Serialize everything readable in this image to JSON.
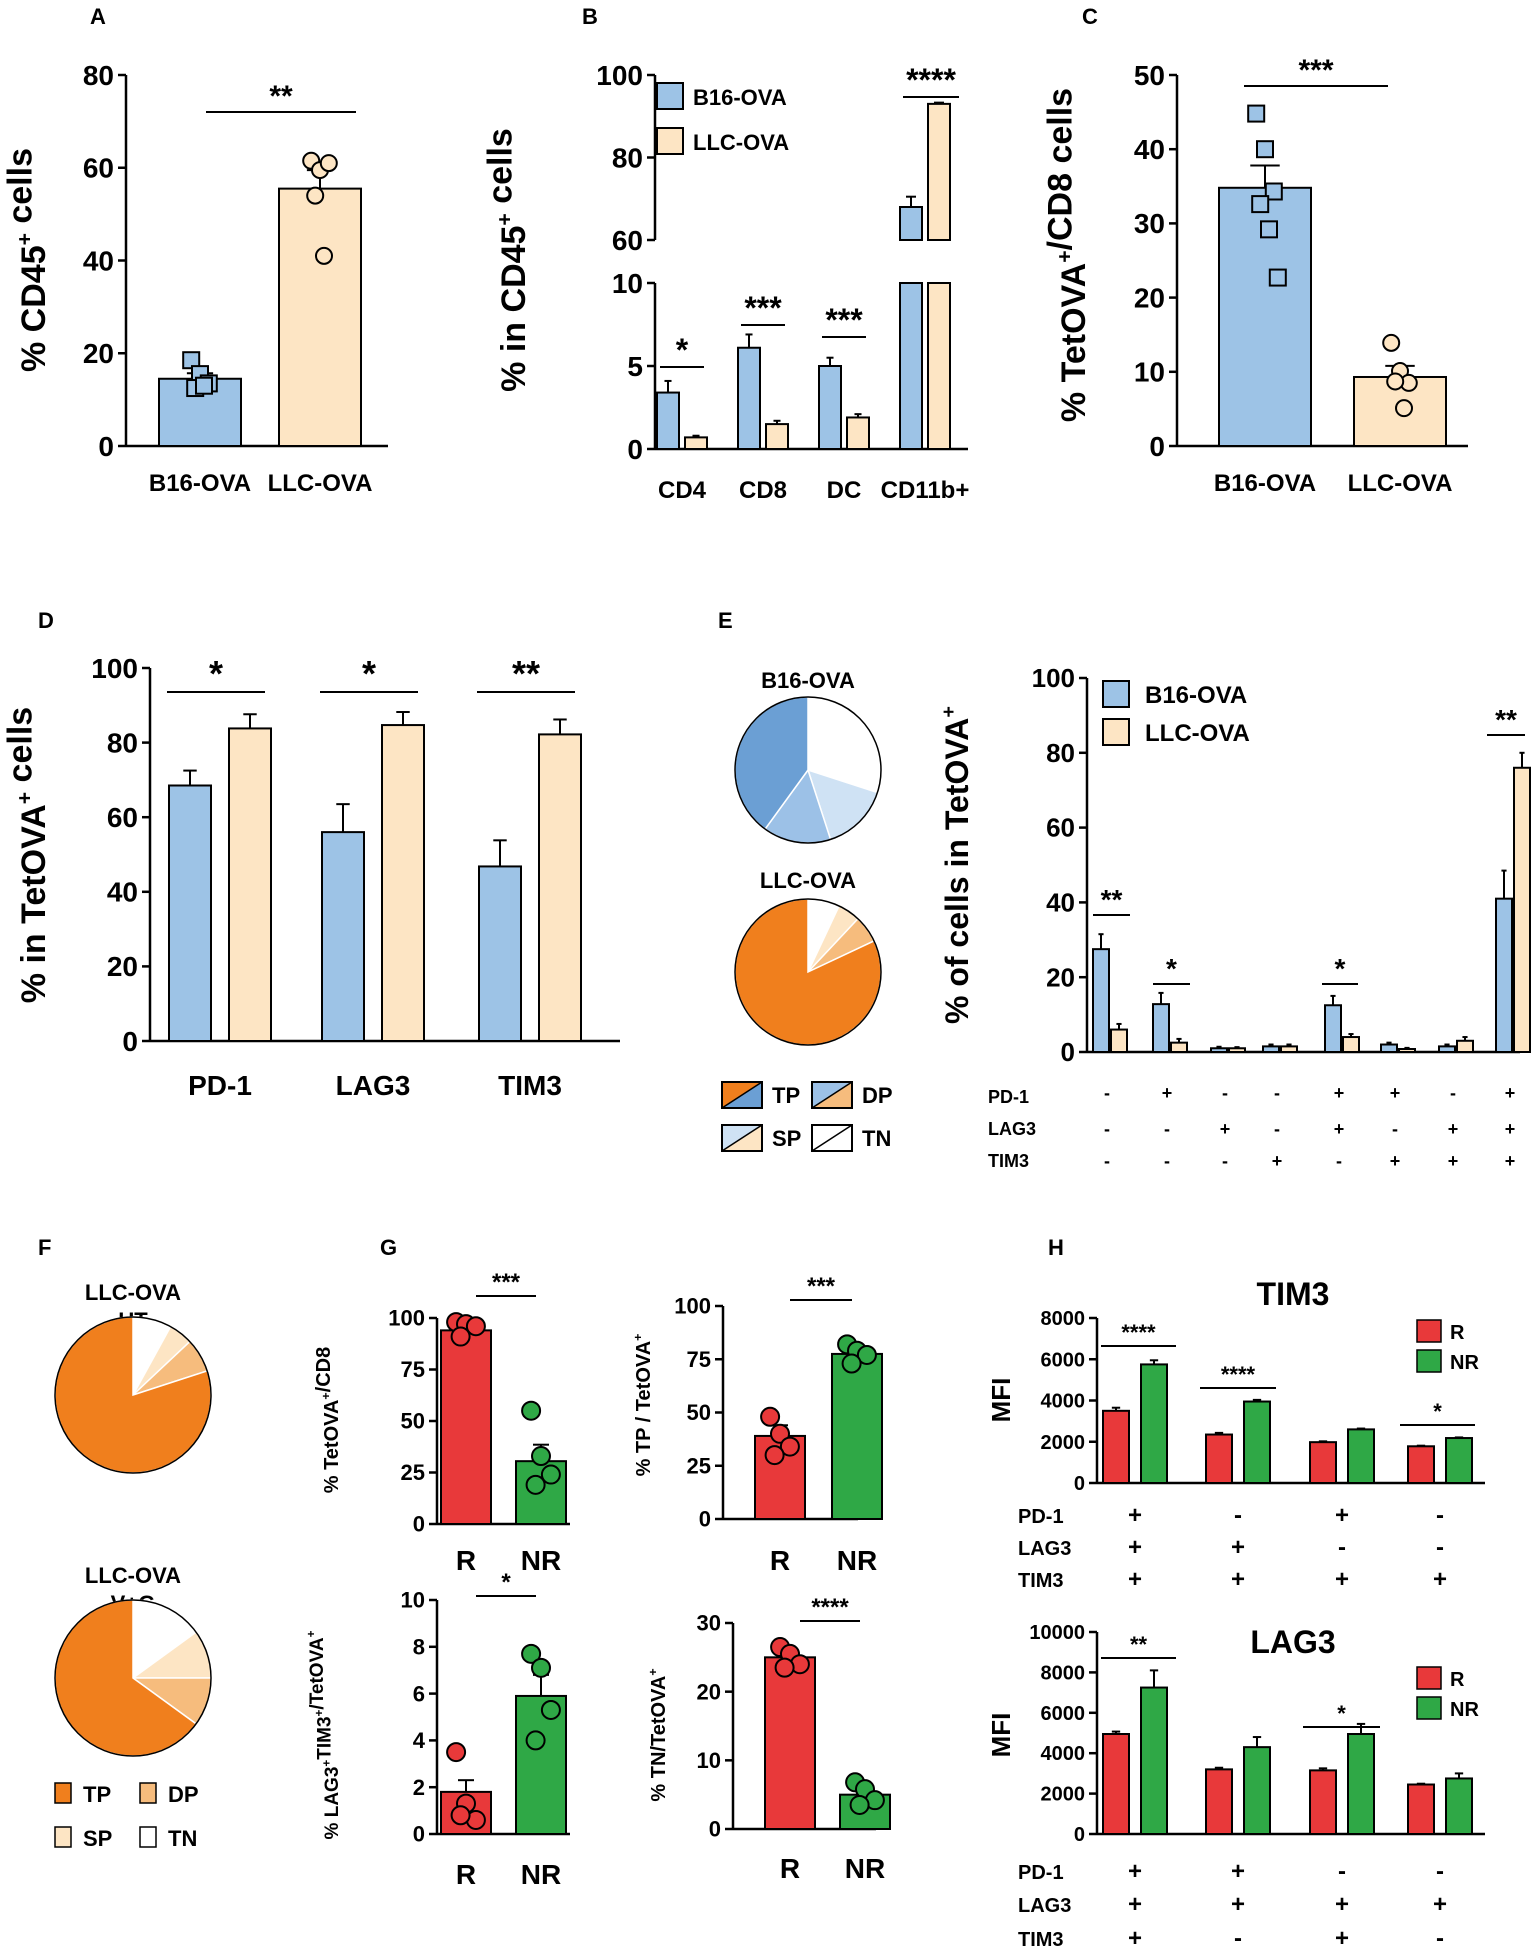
{
  "colors": {
    "blue": "#9dc3e6",
    "cream": "#fde5c4",
    "red": "#e8393a",
    "green": "#2fa846",
    "orange": "#f07f1d",
    "tp_dark": "#6b9fd4",
    "dp_mid": "#9cc1e7",
    "sp_light": "#cfe2f4",
    "tn": "#ffffff",
    "lorange": "#f6bc7d",
    "xlorange": "#fde5c4"
  },
  "panel_labels": {
    "A": "A",
    "B": "B",
    "C": "C",
    "D": "D",
    "E": "E",
    "F": "F",
    "G": "G",
    "H": "H"
  },
  "chart_data": [
    {
      "id": "A",
      "type": "bar",
      "title": "",
      "ylabel": "% CD45",
      "ylabel_sup": "+",
      "ylabel_tail": " cells",
      "categories": [
        "B16-OVA",
        "LLC-OVA"
      ],
      "values": [
        14.5,
        55.5
      ],
      "errors": [
        1.2,
        4.0
      ],
      "points": [
        [
          18.5,
          15.5,
          13.5,
          12.5,
          13.0
        ],
        [
          61.5,
          59.5,
          61.0,
          54.0,
          41.0
        ]
      ],
      "ylim": [
        0,
        80
      ],
      "yticks": [
        "0",
        "20",
        "40",
        "60",
        "80"
      ],
      "significance": [
        {
          "label": "**"
        }
      ]
    },
    {
      "id": "B",
      "type": "bar",
      "title": "",
      "ylabel": "% in CD45",
      "ylabel_sup": "+",
      "ylabel_tail": " cells",
      "categories": [
        "CD4",
        "CD8",
        "DC",
        "CD11b+"
      ],
      "series": [
        {
          "name": "B16-OVA",
          "values": [
            3.4,
            6.1,
            5.0,
            68.0
          ],
          "errors": [
            0.7,
            0.8,
            0.5,
            2.5
          ]
        },
        {
          "name": "LLC-OVA",
          "values": [
            0.7,
            1.5,
            1.9,
            93.0
          ],
          "errors": [
            0.1,
            0.2,
            0.2,
            0.3
          ]
        }
      ],
      "axis_break": {
        "lower": [
          0,
          10
        ],
        "upper": [
          60,
          100
        ]
      },
      "yticks": [
        "0",
        "5",
        "10",
        "60",
        "80",
        "100"
      ],
      "significance": [
        {
          "label": "*"
        },
        {
          "label": "***"
        },
        {
          "label": "***"
        },
        {
          "label": "****"
        }
      ]
    },
    {
      "id": "C",
      "type": "bar",
      "title": "",
      "ylabel": "% TetOVA",
      "ylabel_sup": "+",
      "ylabel_tail": "/CD8 cells",
      "categories": [
        "B16-OVA",
        "LLC-OVA"
      ],
      "values": [
        34.8,
        9.3
      ],
      "errors": [
        3.0,
        1.5
      ],
      "points": [
        [
          44.8,
          40.0,
          34.3,
          32.6,
          29.2,
          22.7
        ],
        [
          13.9,
          10.1,
          8.5,
          8.7,
          5.1
        ]
      ],
      "ylim": [
        0,
        50
      ],
      "yticks": [
        "0",
        "10",
        "20",
        "30",
        "40",
        "50"
      ],
      "significance": [
        {
          "label": "***"
        }
      ]
    },
    {
      "id": "D",
      "type": "bar",
      "title": "",
      "ylabel": "% in TetOVA",
      "ylabel_sup": "+",
      "ylabel_tail": " cells",
      "categories": [
        "PD-1",
        "LAG3",
        "TIM3"
      ],
      "series": [
        {
          "name": "B16-OVA",
          "values": [
            68.5,
            56.0,
            46.8
          ],
          "errors": [
            4.0,
            7.5,
            7.0
          ]
        },
        {
          "name": "LLC-OVA",
          "values": [
            83.8,
            84.7,
            82.2
          ],
          "errors": [
            3.8,
            3.5,
            4.0
          ]
        }
      ],
      "ylim": [
        0,
        100
      ],
      "yticks": [
        "0",
        "20",
        "40",
        "60",
        "80",
        "100"
      ],
      "significance": [
        {
          "label": "*"
        },
        {
          "label": "*"
        },
        {
          "label": "**"
        }
      ]
    },
    {
      "id": "E-pies",
      "type": "pie",
      "pies": [
        {
          "title": "B16-OVA",
          "labels": [
            "TN",
            "SP",
            "DP",
            "TP"
          ],
          "values": [
            30,
            15,
            15,
            40
          ]
        },
        {
          "title": "LLC-OVA",
          "labels": [
            "TN",
            "SP",
            "DP",
            "TP"
          ],
          "values": [
            7,
            5,
            6,
            82
          ]
        }
      ],
      "legend": [
        "TP",
        "DP",
        "SP",
        "TN"
      ]
    },
    {
      "id": "E",
      "type": "bar",
      "title": "",
      "ylabel": "% of cells in TetOVA",
      "ylabel_sup": "+",
      "series": [
        {
          "name": "B16-OVA",
          "values": [
            27.5,
            12.8,
            1.0,
            1.5,
            12.5,
            2.0,
            1.5,
            41.0
          ],
          "errors": [
            4.0,
            3.0,
            0.4,
            0.5,
            2.5,
            0.5,
            0.5,
            7.5
          ]
        },
        {
          "name": "LLC-OVA",
          "values": [
            6.0,
            2.5,
            1.0,
            1.5,
            4.0,
            0.8,
            3.0,
            76.0
          ],
          "errors": [
            1.5,
            1.0,
            0.3,
            0.5,
            0.8,
            0.3,
            1.0,
            4.0
          ]
        }
      ],
      "ylim": [
        0,
        100
      ],
      "yticks": [
        "0",
        "20",
        "40",
        "60",
        "80",
        "100"
      ],
      "marker_rows": [
        {
          "name": "PD-1",
          "signs": [
            "-",
            "+",
            "-",
            "-",
            "+",
            "+",
            "-",
            "+"
          ]
        },
        {
          "name": "LAG3",
          "signs": [
            "-",
            "-",
            "+",
            "-",
            "+",
            "-",
            "+",
            "+"
          ]
        },
        {
          "name": "TIM3",
          "signs": [
            "-",
            "-",
            "-",
            "+",
            "-",
            "+",
            "+",
            "+"
          ]
        }
      ],
      "significance": [
        {
          "label": "**"
        },
        {
          "label": "*"
        },
        {
          "label": "*"
        },
        {
          "label": "**"
        }
      ]
    },
    {
      "id": "F",
      "type": "pie",
      "pies": [
        {
          "title": "LLC-OVA",
          "subtitle": "UT",
          "labels": [
            "TN",
            "SP",
            "DP",
            "TP"
          ],
          "values": [
            8,
            5,
            7,
            80
          ]
        },
        {
          "title": "LLC-OVA",
          "subtitle": "V+G",
          "labels": [
            "TN",
            "SP",
            "DP",
            "TP"
          ],
          "values": [
            15,
            10,
            10,
            65
          ]
        }
      ],
      "legend": [
        "TP",
        "DP",
        "SP",
        "TN"
      ]
    },
    {
      "id": "G1",
      "type": "bar",
      "title": "",
      "ylabel": "% TetOVA",
      "ylabel_sup": "+",
      "ylabel_tail": "/CD8",
      "categories": [
        "R",
        "NR"
      ],
      "values": [
        94,
        30.5
      ],
      "errors": [
        3.0,
        8.0
      ],
      "points": [
        [
          98,
          97,
          96,
          91
        ],
        [
          55,
          33,
          24,
          19
        ]
      ],
      "ylim": [
        0,
        100
      ],
      "yticks": [
        "0",
        "25",
        "50",
        "75",
        "100"
      ],
      "significance": [
        {
          "label": "***"
        }
      ]
    },
    {
      "id": "G2",
      "type": "bar",
      "title": "",
      "ylabel": "% TP / TetOVA",
      "ylabel_sup": "+",
      "ylabel_tail": "",
      "categories": [
        "R",
        "NR"
      ],
      "values": [
        39,
        77.5
      ],
      "errors": [
        5.0,
        2.5
      ],
      "points": [
        [
          48,
          40,
          34,
          30
        ],
        [
          82,
          79,
          77,
          73
        ]
      ],
      "ylim": [
        0,
        100
      ],
      "yticks": [
        "0",
        "25",
        "50",
        "75",
        "100"
      ],
      "significance": [
        {
          "label": "***"
        }
      ]
    },
    {
      "id": "G3",
      "type": "bar",
      "title": "",
      "ylabel": "% LAG3",
      "ylabel_sup": "+",
      "ylabel_mid": "TIM3",
      "ylabel_sup2": "+",
      "ylabel_tail": "/TetOVA",
      "ylabel_sup3": "+",
      "categories": [
        "R",
        "NR"
      ],
      "values": [
        1.8,
        5.9
      ],
      "errors": [
        0.5,
        0.9
      ],
      "points": [
        [
          3.5,
          1.3,
          0.6,
          0.8
        ],
        [
          7.7,
          7.1,
          5.3,
          4.0
        ]
      ],
      "ylim": [
        0,
        10
      ],
      "yticks": [
        "0",
        "2",
        "4",
        "6",
        "8",
        "10"
      ],
      "significance": [
        {
          "label": "*"
        }
      ]
    },
    {
      "id": "G4",
      "type": "bar",
      "title": "",
      "ylabel": "% TN/TetOVA",
      "ylabel_sup": "+",
      "ylabel_tail": "",
      "categories": [
        "R",
        "NR"
      ],
      "values": [
        25,
        5
      ],
      "errors": [
        0.8,
        0.7
      ],
      "points": [
        [
          26.5,
          25.5,
          24.0,
          23.5
        ],
        [
          6.8,
          5.8,
          4.2,
          3.5
        ]
      ],
      "ylim": [
        0,
        30
      ],
      "yticks": [
        "0",
        "10",
        "20",
        "30"
      ],
      "significance": [
        {
          "label": "****"
        }
      ]
    },
    {
      "id": "H1",
      "type": "bar",
      "title": "TIM3",
      "ylabel": "MFI",
      "series": [
        {
          "name": "R",
          "values": [
            3500,
            2350,
            1980,
            1780
          ],
          "errors": [
            150,
            80,
            40,
            30
          ]
        },
        {
          "name": "NR",
          "values": [
            5750,
            3950,
            2600,
            2180
          ],
          "errors": [
            200,
            80,
            40,
            30
          ]
        }
      ],
      "ylim": [
        0,
        8000
      ],
      "yticks": [
        "0",
        "2000",
        "4000",
        "6000",
        "8000"
      ],
      "marker_rows": [
        {
          "name": "PD-1",
          "signs": [
            "+",
            "-",
            "+",
            "-"
          ]
        },
        {
          "name": "LAG3",
          "signs": [
            "+",
            "+",
            "-",
            "-"
          ]
        },
        {
          "name": "TIM3",
          "signs": [
            "+",
            "+",
            "+",
            "+"
          ]
        }
      ],
      "significance": [
        {
          "label": "****"
        },
        {
          "label": "****"
        },
        {
          "label": "*"
        }
      ]
    },
    {
      "id": "H2",
      "type": "bar",
      "title": "LAG3",
      "ylabel": "MFI",
      "series": [
        {
          "name": "R",
          "values": [
            4950,
            3200,
            3150,
            2450
          ],
          "errors": [
            120,
            80,
            100,
            40
          ]
        },
        {
          "name": "NR",
          "values": [
            7250,
            4300,
            4950,
            2750
          ],
          "errors": [
            850,
            500,
            500,
            250
          ]
        }
      ],
      "ylim": [
        0,
        10000
      ],
      "yticks": [
        "0",
        "2000",
        "4000",
        "6000",
        "8000",
        "10000"
      ],
      "marker_rows": [
        {
          "name": "PD-1",
          "signs": [
            "+",
            "+",
            "-",
            "-"
          ]
        },
        {
          "name": "LAG3",
          "signs": [
            "+",
            "+",
            "+",
            "+"
          ]
        },
        {
          "name": "TIM3",
          "signs": [
            "+",
            "-",
            "+",
            "-"
          ]
        }
      ],
      "significance": [
        {
          "label": "**"
        },
        {
          "label": "*"
        }
      ]
    }
  ]
}
